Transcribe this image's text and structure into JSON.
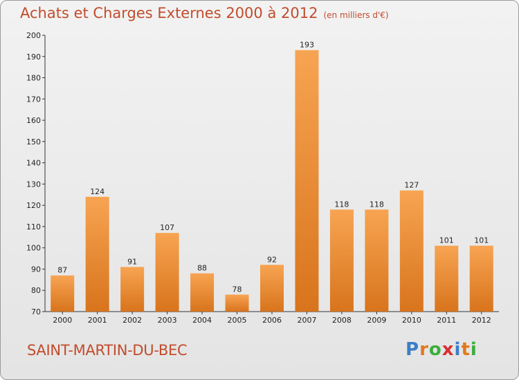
{
  "title": "Achats et Charges Externes 2000 à 2012",
  "subtitle": "(en milliers d'€)",
  "commune": "SAINT-MARTIN-DU-BEC",
  "logo": {
    "text": "Proxiti",
    "letters": [
      "P",
      "r",
      "o",
      "x",
      "i",
      "t",
      "i"
    ],
    "colors": [
      "#3a7ec8",
      "#e07a1f",
      "#3cae3c",
      "#d83030",
      "#3a7ec8",
      "#e07a1f",
      "#3cae3c"
    ]
  },
  "colors": {
    "title": "#c24c2c",
    "bar_light": "#f7a452",
    "bar_dark": "#d8741c"
  },
  "chart_data": {
    "type": "bar",
    "categories": [
      "2000",
      "2001",
      "2002",
      "2003",
      "2004",
      "2005",
      "2006",
      "2007",
      "2008",
      "2009",
      "2010",
      "2011",
      "2012"
    ],
    "values": [
      87,
      124,
      91,
      107,
      88,
      78,
      92,
      193,
      118,
      118,
      127,
      101,
      101
    ],
    "ylim": [
      70,
      200
    ],
    "yticks": [
      70,
      80,
      90,
      100,
      110,
      120,
      130,
      140,
      150,
      160,
      170,
      180,
      190,
      200
    ],
    "grid": false,
    "data_labels": true
  }
}
